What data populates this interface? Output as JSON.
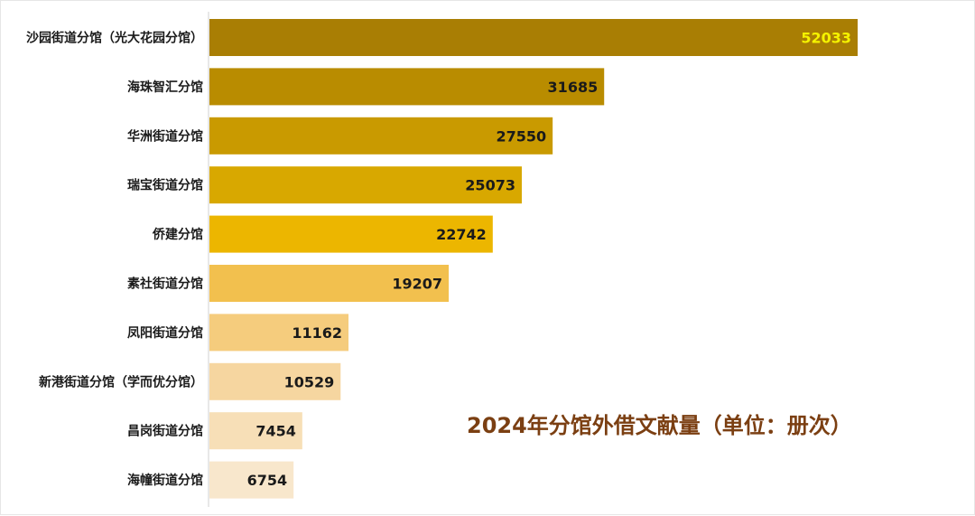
{
  "chart_data": {
    "type": "bar",
    "orientation": "horizontal",
    "title": "2024年分馆外借文献量（单位：册次）",
    "categories": [
      "沙园街道分馆（光大花园分馆）",
      "海珠智汇分馆",
      "华洲街道分馆",
      "瑞宝街道分馆",
      "侨建分馆",
      "素社街道分馆",
      "凤阳街道分馆",
      "新港街道分馆（学而优分馆）",
      "昌岗街道分馆",
      "海幢街道分馆"
    ],
    "values": [
      52033,
      31685,
      27550,
      25073,
      22742,
      19207,
      11162,
      10529,
      7454,
      6754
    ],
    "bar_colors": [
      "#a97e04",
      "#b98c00",
      "#c99a00",
      "#d8a800",
      "#ecb600",
      "#f2c04e",
      "#f5cc7d",
      "#f6d6a0",
      "#f7dfb7",
      "#f8e7cc"
    ],
    "value_label_colors": [
      "#f5f200",
      "#1a1a1a",
      "#1a1a1a",
      "#1a1a1a",
      "#1a1a1a",
      "#1a1a1a",
      "#1a1a1a",
      "#1a1a1a",
      "#1a1a1a",
      "#1a1a1a"
    ],
    "xlim": [
      0,
      60000
    ],
    "grid": false,
    "legend": "none"
  },
  "colors": {
    "title": "#7b3f12",
    "axis": "#d0d0d0"
  }
}
